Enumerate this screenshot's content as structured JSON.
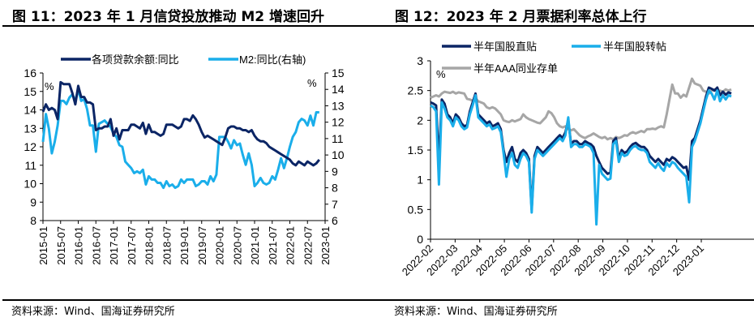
{
  "colors": {
    "dark_navy": "#0b2565",
    "light_blue": "#1aaeea",
    "gray": "#a6a6a6"
  },
  "left_panel": {
    "title": "图 11：2023 年 1 月信贷投放推动 M2 增速回升",
    "source": "资料来源：Wind、国海证券研究所"
  },
  "right_panel": {
    "title": "图 12：2023 年 2 月票据利率总体上行",
    "source": "资料来源：Wind、国海证券研究所"
  },
  "chart_data": [
    {
      "type": "line",
      "title": "图 11：2023 年 1 月信贷投放推动 M2 增速回升",
      "xlabel": "",
      "ylabel": "%",
      "y2label": "%",
      "ylim": [
        8,
        16
      ],
      "y2lim": [
        6,
        15
      ],
      "yticks": [
        "8",
        "9",
        "10",
        "11",
        "12",
        "13",
        "14",
        "15",
        "16"
      ],
      "y2ticks": [
        "6",
        "7",
        "8",
        "9",
        "10",
        "11",
        "12",
        "13",
        "14",
        "15"
      ],
      "x_tick_labels": [
        "2015-01",
        "2015-07",
        "2016-01",
        "2016-07",
        "2017-01",
        "2017-07",
        "2018-01",
        "2018-07",
        "2019-01",
        "2019-07",
        "2020-01",
        "2020-07",
        "2021-01",
        "2021-07",
        "2022-01",
        "2022-07",
        "2023-01"
      ],
      "legend": [
        "各项贷款余额:同比",
        "M2:同比(右轴)"
      ],
      "legend_position": "top",
      "grid": false,
      "x_start": "2015-01",
      "x_step": "1 month",
      "series": [
        {
          "name": "各项贷款余额:同比",
          "axis": "left",
          "color": "#0b2565",
          "values": [
            13.9,
            14.3,
            14.0,
            14.1,
            14.0,
            13.5,
            15.5,
            15.4,
            15.4,
            15.4,
            14.9,
            14.3,
            15.3,
            14.7,
            14.7,
            14.4,
            14.4,
            14.3,
            12.9,
            13.0,
            13.0,
            13.1,
            13.1,
            13.5,
            12.6,
            13.0,
            12.4,
            12.9,
            12.9,
            12.9,
            13.2,
            13.2,
            13.1,
            13.0,
            13.3,
            12.7,
            13.2,
            12.8,
            12.8,
            12.7,
            12.6,
            12.7,
            13.2,
            13.2,
            13.2,
            13.1,
            13.0,
            13.1,
            13.5,
            13.5,
            13.4,
            13.7,
            13.5,
            13.2,
            12.8,
            12.5,
            12.6,
            12.5,
            12.4,
            12.3,
            12.2,
            12.1,
            12.5,
            13.0,
            13.1,
            13.1,
            13.0,
            13.0,
            12.9,
            12.9,
            12.8,
            12.9,
            12.6,
            12.4,
            12.3,
            12.3,
            12.2,
            12.0,
            11.9,
            11.8,
            11.7,
            11.6,
            11.5,
            11.4,
            11.3,
            11.1,
            11.0,
            11.2,
            11.1,
            11.0,
            11.2,
            11.1,
            11.0,
            11.1,
            11.3
          ]
        },
        {
          "name": "M2:同比(右轴)",
          "axis": "right",
          "color": "#1aaeea",
          "values": [
            10.8,
            12.5,
            11.6,
            10.1,
            10.8,
            11.8,
            13.3,
            13.3,
            13.1,
            13.5,
            13.7,
            13.3,
            14.0,
            13.3,
            13.4,
            12.8,
            11.8,
            11.8,
            10.2,
            11.9,
            12.0,
            12.1,
            11.9,
            11.7,
            11.3,
            11.1,
            10.6,
            10.5,
            9.6,
            9.4,
            9.2,
            8.9,
            9.0,
            8.9,
            9.1,
            8.2,
            8.7,
            8.5,
            8.5,
            8.3,
            8.3,
            8.0,
            8.4,
            8.1,
            8.2,
            8.0,
            8.1,
            8.5,
            8.3,
            8.5,
            8.5,
            8.5,
            8.1,
            8.2,
            8.4,
            8.4,
            8.2,
            8.7,
            8.4,
            8.8,
            11.1,
            11.1,
            11.1,
            10.8,
            10.4,
            10.9,
            10.6,
            10.7,
            10.0,
            9.4,
            10.1,
            9.4,
            8.1,
            8.3,
            8.6,
            8.3,
            8.2,
            8.3,
            8.7,
            8.5,
            9.1,
            9.8,
            9.2,
            9.8,
            10.5,
            11.1,
            11.4,
            12.0,
            12.2,
            12.1,
            11.8,
            12.4,
            11.8,
            12.6,
            12.6
          ]
        }
      ]
    },
    {
      "type": "line",
      "title": "图 12：2023 年 2 月票据利率总体上行",
      "xlabel": "",
      "ylabel": "%",
      "ylim": [
        0,
        3
      ],
      "yticks": [
        "0",
        "0.5",
        "1",
        "1.5",
        "2",
        "2.5",
        "3"
      ],
      "x_tick_labels": [
        "2022-02",
        "2022-03",
        "2022-04",
        "2022-05",
        "2022-06",
        "2022-07",
        "2022-08",
        "2022-09",
        "2022-10",
        "2022-11",
        "2022-12",
        "2023-01"
      ],
      "legend": [
        "半年国股直贴",
        "半年国股转帖",
        "半年AAA同业存单"
      ],
      "legend_position": "top",
      "grid": false,
      "x_start": "2022-02-01",
      "x_end": "2023-02-10",
      "series": [
        {
          "name": "半年国股直贴",
          "color": "#0b2565",
          "values": [
            2.3,
            2.28,
            2.25,
            1.3,
            2.35,
            2.28,
            2.1,
            2.05,
            1.95,
            2.1,
            2.05,
            1.95,
            1.9,
            1.92,
            2.15,
            2.3,
            2.45,
            2.1,
            2.05,
            2.0,
            1.95,
            1.98,
            1.9,
            1.92,
            1.95,
            1.85,
            1.5,
            1.3,
            1.45,
            1.55,
            1.35,
            1.3,
            1.45,
            1.5,
            1.45,
            1.35,
            0.5,
            1.4,
            1.55,
            1.5,
            1.45,
            1.5,
            1.55,
            1.6,
            1.65,
            1.7,
            1.75,
            1.7,
            1.8,
            2.0,
            1.6,
            1.65,
            1.65,
            1.6,
            1.6,
            1.65,
            1.62,
            1.6,
            1.55,
            1.4,
            1.3,
            1.2,
            1.15,
            1.1,
            1.12,
            1.65,
            1.7,
            1.35,
            1.5,
            1.45,
            1.48,
            1.55,
            1.6,
            1.62,
            1.58,
            1.55,
            1.55,
            1.5,
            1.4,
            1.35,
            1.3,
            1.35,
            1.3,
            1.25,
            1.35,
            1.32,
            1.38,
            1.35,
            1.3,
            1.25,
            1.2,
            1.22,
            1.0,
            1.65,
            1.7,
            1.85,
            2.0,
            2.2,
            2.4,
            2.55,
            2.53,
            2.5,
            2.55,
            2.42,
            2.48,
            2.43,
            2.47,
            2.45
          ]
        },
        {
          "name": "半年国股转帖",
          "color": "#1aaeea",
          "values": [
            2.25,
            2.22,
            2.15,
            0.92,
            2.3,
            2.2,
            2.05,
            2.0,
            1.9,
            2.05,
            2.0,
            1.9,
            1.85,
            1.88,
            2.1,
            2.25,
            2.42,
            2.05,
            2.0,
            1.95,
            1.9,
            1.93,
            1.85,
            1.87,
            1.9,
            1.8,
            1.45,
            1.05,
            1.35,
            1.45,
            1.25,
            1.2,
            1.35,
            1.45,
            1.4,
            1.3,
            0.45,
            1.35,
            1.5,
            1.45,
            1.4,
            1.45,
            1.5,
            1.55,
            1.6,
            1.65,
            1.7,
            1.65,
            1.75,
            2.05,
            1.55,
            1.6,
            1.6,
            1.55,
            1.55,
            1.6,
            1.58,
            1.55,
            1.45,
            0.25,
            1.25,
            1.1,
            1.05,
            1.0,
            1.02,
            1.6,
            1.65,
            1.3,
            1.45,
            1.4,
            1.42,
            1.5,
            1.55,
            1.57,
            1.52,
            1.5,
            1.5,
            1.45,
            1.3,
            1.25,
            1.2,
            1.28,
            1.2,
            1.15,
            1.28,
            1.22,
            1.3,
            1.27,
            1.2,
            1.15,
            1.1,
            1.05,
            0.62,
            1.55,
            1.65,
            1.8,
            1.95,
            2.15,
            2.35,
            2.5,
            2.45,
            2.35,
            2.5,
            2.32,
            2.42,
            2.35,
            2.42,
            2.4
          ]
        },
        {
          "name": "半年AAA同业存单",
          "color": "#a6a6a6",
          "values": [
            2.38,
            2.4,
            2.42,
            2.4,
            2.45,
            2.48,
            2.47,
            2.46,
            2.48,
            2.45,
            2.47,
            2.46,
            2.45,
            2.36,
            2.35,
            2.33,
            2.37,
            2.32,
            2.3,
            2.28,
            2.22,
            2.2,
            2.22,
            2.2,
            2.15,
            2.1,
            2.0,
            1.98,
            1.97,
            2.0,
            1.98,
            2.0,
            2.02,
            2.1,
            2.05,
            2.02,
            2.0,
            1.98,
            1.96,
            1.95,
            2.0,
            2.05,
            2.15,
            2.12,
            2.05,
            1.95,
            1.9,
            1.88,
            1.9,
            1.85,
            1.83,
            1.85,
            1.8,
            1.75,
            1.72,
            1.7,
            1.73,
            1.75,
            1.78,
            1.75,
            1.72,
            1.7,
            1.72,
            1.68,
            1.7,
            1.68,
            1.72,
            1.7,
            1.72,
            1.75,
            1.74,
            1.78,
            1.8,
            1.78,
            1.8,
            1.82,
            1.8,
            1.85,
            1.85,
            1.86,
            1.85,
            1.88,
            1.9,
            1.88,
            2.1,
            2.35,
            2.6,
            2.45,
            2.45,
            2.38,
            2.43,
            2.4,
            2.55,
            2.7,
            2.62,
            2.6,
            2.58,
            2.5,
            2.48,
            2.45,
            2.5,
            2.52,
            2.48,
            2.5,
            2.48,
            2.52,
            2.5,
            2.52
          ]
        }
      ]
    }
  ]
}
